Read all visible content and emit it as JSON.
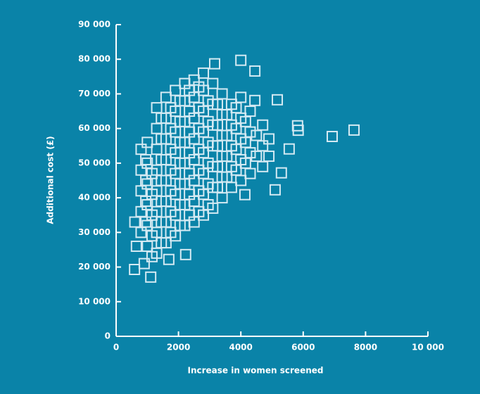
{
  "chart_data": {
    "type": "scatter",
    "x_label": "Increase in women screened",
    "y_label": "Additional cost (£)",
    "xlim": [
      0,
      10000
    ],
    "ylim": [
      0,
      90000
    ],
    "xticks": [
      0,
      2000,
      4000,
      6000,
      8000,
      {
        "value": 10000,
        "label": "10 000"
      }
    ],
    "yticks": [
      0,
      {
        "value": 10000,
        "label": "10 000"
      },
      {
        "value": 20000,
        "label": "20 000"
      },
      {
        "value": 30000,
        "label": "30 000"
      },
      {
        "value": 40000,
        "label": "40 000"
      },
      {
        "value": 50000,
        "label": "50 000"
      },
      {
        "value": 60000,
        "label": "60 000"
      },
      {
        "value": 70000,
        "label": "70 000"
      },
      {
        "value": 80000,
        "label": "80 000"
      },
      {
        "value": 90000,
        "label": "90 000"
      }
    ],
    "color": "#d4eaf3",
    "x": [
      7630,
      6930,
      4000,
      4450,
      5100,
      4130,
      2230,
      1110,
      590,
      1690,
      5820,
      5840,
      5170,
      4450,
      3160,
      5550,
      5300,
      600,
      900,
      650,
      800,
      800,
      800,
      800,
      800,
      1000,
      1000,
      1000,
      1000,
      1000,
      1000,
      1300,
      1300,
      1300,
      1300,
      1300,
      1300,
      1300,
      1300,
      1600,
      1600,
      1600,
      1600,
      1600,
      1600,
      1600,
      1600,
      1900,
      1900,
      1900,
      1900,
      1900,
      1900,
      1900,
      1900,
      2200,
      2200,
      2200,
      2200,
      2200,
      2200,
      2200,
      2200,
      2500,
      2500,
      2500,
      2500,
      2500,
      2500,
      2500,
      2500,
      2800,
      2800,
      2800,
      2800,
      2800,
      2800,
      2800,
      2800,
      3100,
      3100,
      3100,
      3100,
      3100,
      3100,
      3100,
      3400,
      3400,
      3400,
      3400,
      3400,
      3400,
      3700,
      3700,
      3700,
      3700,
      3700,
      4000,
      4000,
      4000,
      4000,
      4000,
      4300,
      4300,
      4300,
      4300,
      4700,
      4700,
      4700,
      950,
      950,
      950,
      950,
      1150,
      1150,
      1150,
      1150,
      1150,
      1450,
      1450,
      1450,
      1450,
      1450,
      1450,
      1450,
      1750,
      1750,
      1750,
      1750,
      1750,
      1750,
      1750,
      2050,
      2050,
      2050,
      2050,
      2050,
      2050,
      2050,
      2350,
      2350,
      2350,
      2350,
      2350,
      2350,
      2350,
      2650,
      2650,
      2650,
      2650,
      2650,
      2650,
      2650,
      2950,
      2950,
      2950,
      2950,
      2950,
      2950,
      3250,
      3250,
      3250,
      3250,
      3250,
      3550,
      3550,
      3550,
      3550,
      3850,
      3850,
      3850,
      3850,
      4150,
      4150,
      4150,
      4500,
      4500,
      4900,
      4900
    ],
    "values": [
      59550,
      57700,
      79700,
      76600,
      42300,
      40900,
      23600,
      17100,
      19300,
      22200,
      60800,
      59500,
      68300,
      68100,
      78700,
      54100,
      47200,
      33000,
      21000,
      26000,
      30000,
      36000,
      42000,
      48000,
      54000,
      26000,
      32000,
      38000,
      44000,
      50000,
      56000,
      24000,
      30000,
      36000,
      42000,
      48000,
      54000,
      60000,
      66000,
      27000,
      33000,
      39000,
      45000,
      51000,
      57000,
      63000,
      69000,
      29000,
      35000,
      41000,
      47000,
      53000,
      59000,
      65000,
      71000,
      32000,
      38000,
      44000,
      50000,
      56000,
      62000,
      68000,
      73000,
      33000,
      39000,
      45000,
      51000,
      57000,
      63000,
      69000,
      74000,
      35000,
      41000,
      47000,
      53000,
      59000,
      65000,
      71000,
      76000,
      37000,
      43000,
      49000,
      55000,
      61000,
      67000,
      73000,
      40000,
      46000,
      52000,
      58000,
      64000,
      70000,
      43000,
      49000,
      55000,
      61000,
      67000,
      45000,
      51000,
      57000,
      63000,
      69000,
      47000,
      53000,
      59000,
      65000,
      49000,
      55000,
      61000,
      33000,
      39000,
      45000,
      51000,
      23000,
      29000,
      35000,
      41000,
      47000,
      27000,
      33000,
      39000,
      45000,
      51000,
      57000,
      63000,
      30000,
      36000,
      42000,
      48000,
      54000,
      60000,
      66000,
      32000,
      38000,
      44000,
      50000,
      56000,
      62000,
      68000,
      35000,
      41000,
      47000,
      53000,
      59000,
      65000,
      71000,
      36000,
      42000,
      48000,
      54000,
      60000,
      66000,
      72000,
      38000,
      44000,
      50000,
      56000,
      62000,
      68000,
      43000,
      49000,
      55000,
      61000,
      67000,
      46000,
      52000,
      58000,
      64000,
      48000,
      54000,
      60000,
      66000,
      50000,
      56000,
      62000,
      52000,
      58000,
      52000,
      57000
    ]
  }
}
